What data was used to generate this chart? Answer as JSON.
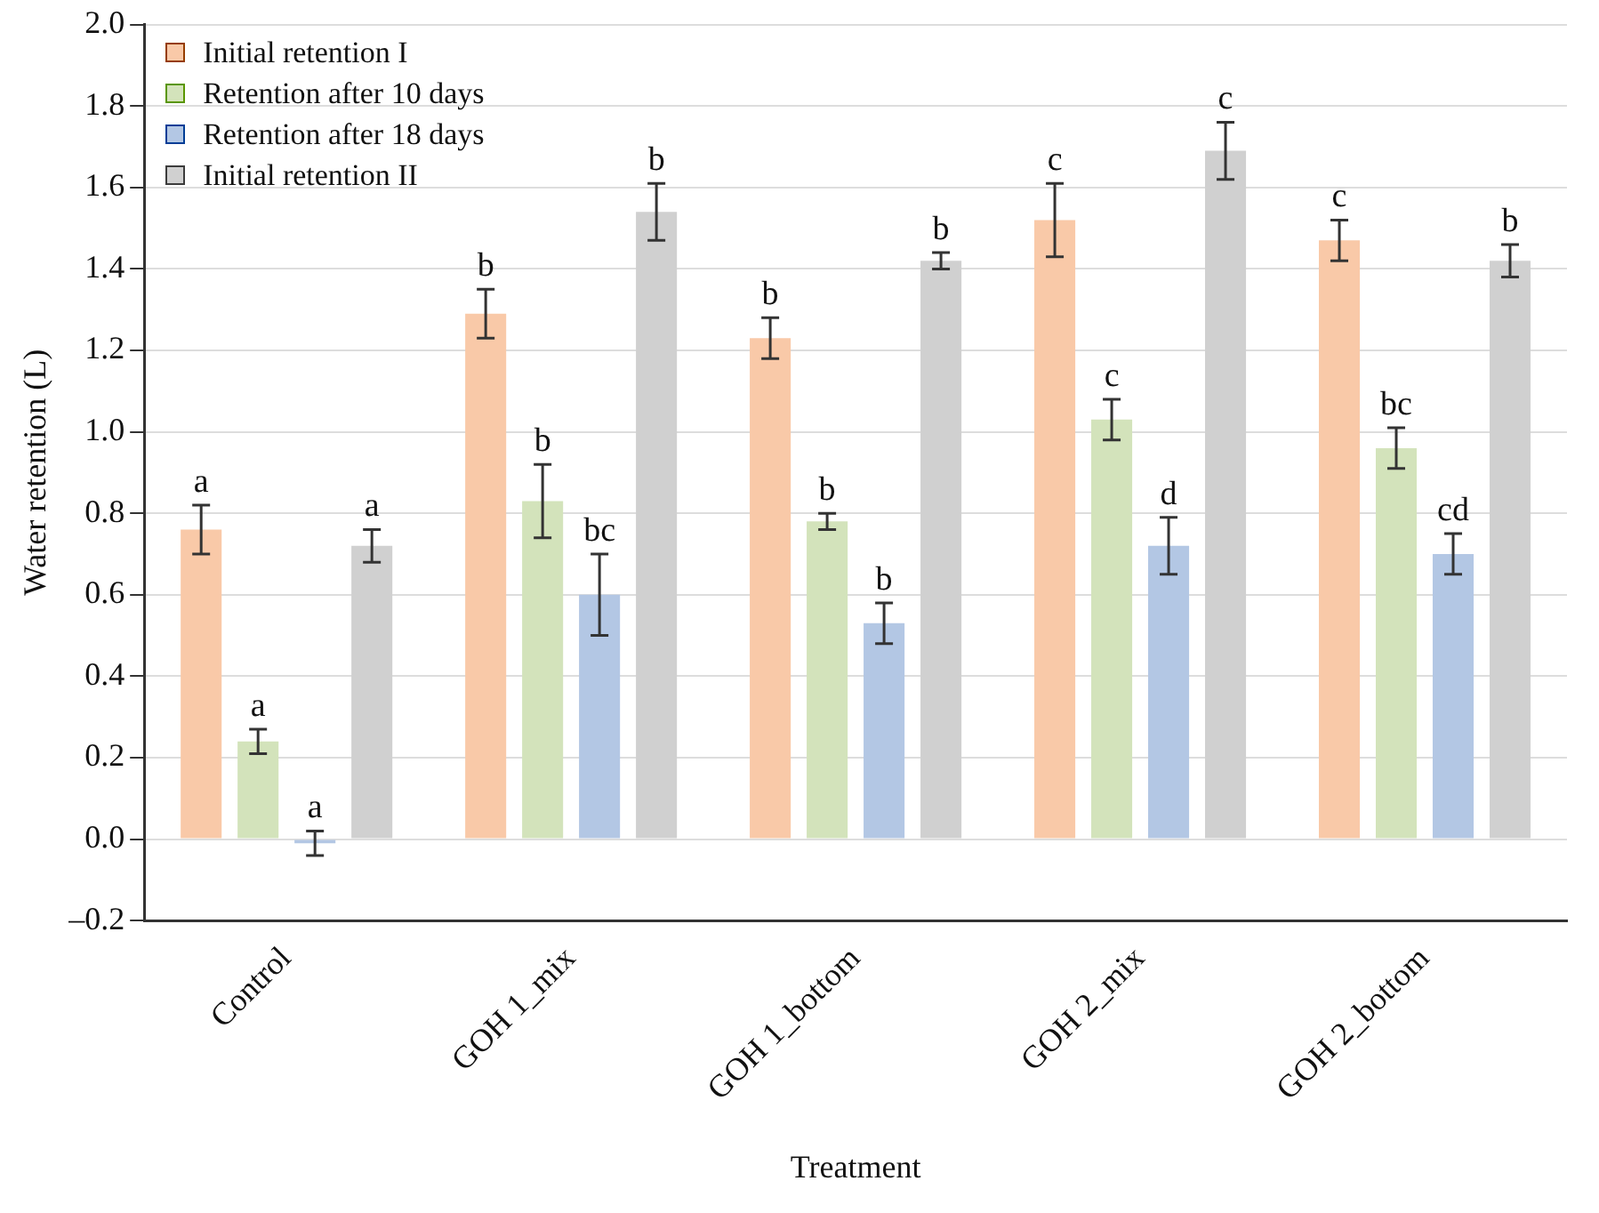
{
  "chart_data": {
    "type": "bar",
    "xlabel": "Treatment",
    "ylabel": "Water retention (L)",
    "categories": [
      "Control",
      "GOH 1_mix",
      "GOH 1_bottom",
      "GOH 2_mix",
      "GOH 2_bottom"
    ],
    "series": [
      {
        "name": "Initial retention I",
        "color": "#f9c9a8",
        "values": [
          0.76,
          1.29,
          1.23,
          1.52,
          1.47
        ],
        "errors": [
          0.06,
          0.06,
          0.05,
          0.09,
          0.05
        ],
        "value_labels": [
          "a",
          "b",
          "b",
          "c",
          "c"
        ]
      },
      {
        "name": "Retention after 10 days",
        "color": "#d3e3bb",
        "values": [
          0.24,
          0.83,
          0.78,
          1.03,
          0.96
        ],
        "errors": [
          0.03,
          0.09,
          0.02,
          0.05,
          0.05
        ],
        "value_labels": [
          "a",
          "b",
          "b",
          "c",
          "bc"
        ]
      },
      {
        "name": "Retention after 18 days",
        "color": "#b3c7e4",
        "values": [
          -0.01,
          0.6,
          0.53,
          0.72,
          0.7
        ],
        "errors": [
          0.03,
          0.1,
          0.05,
          0.07,
          0.05
        ],
        "value_labels": [
          "a",
          "bc",
          "b",
          "d",
          "cd"
        ]
      },
      {
        "name": "Initial retention II",
        "color": "#d0d0d0",
        "values": [
          0.72,
          1.54,
          1.42,
          1.69,
          1.42
        ],
        "errors": [
          0.04,
          0.07,
          0.02,
          0.07,
          0.04
        ],
        "value_labels": [
          "a",
          "b",
          "b",
          "c",
          "b"
        ]
      }
    ],
    "ylim": [
      -0.2,
      2.0
    ],
    "yticks": [
      {
        "value": -0.2,
        "label": "–0.2"
      },
      {
        "value": 0,
        "label": "0.0"
      },
      0.2,
      0.4,
      0.6,
      0.8,
      {
        "value": 1,
        "label": "1.0"
      },
      1.2,
      1.4,
      1.6,
      1.8,
      {
        "value": 2,
        "label": "2.0"
      }
    ],
    "grid": "y",
    "legend": "top left"
  }
}
